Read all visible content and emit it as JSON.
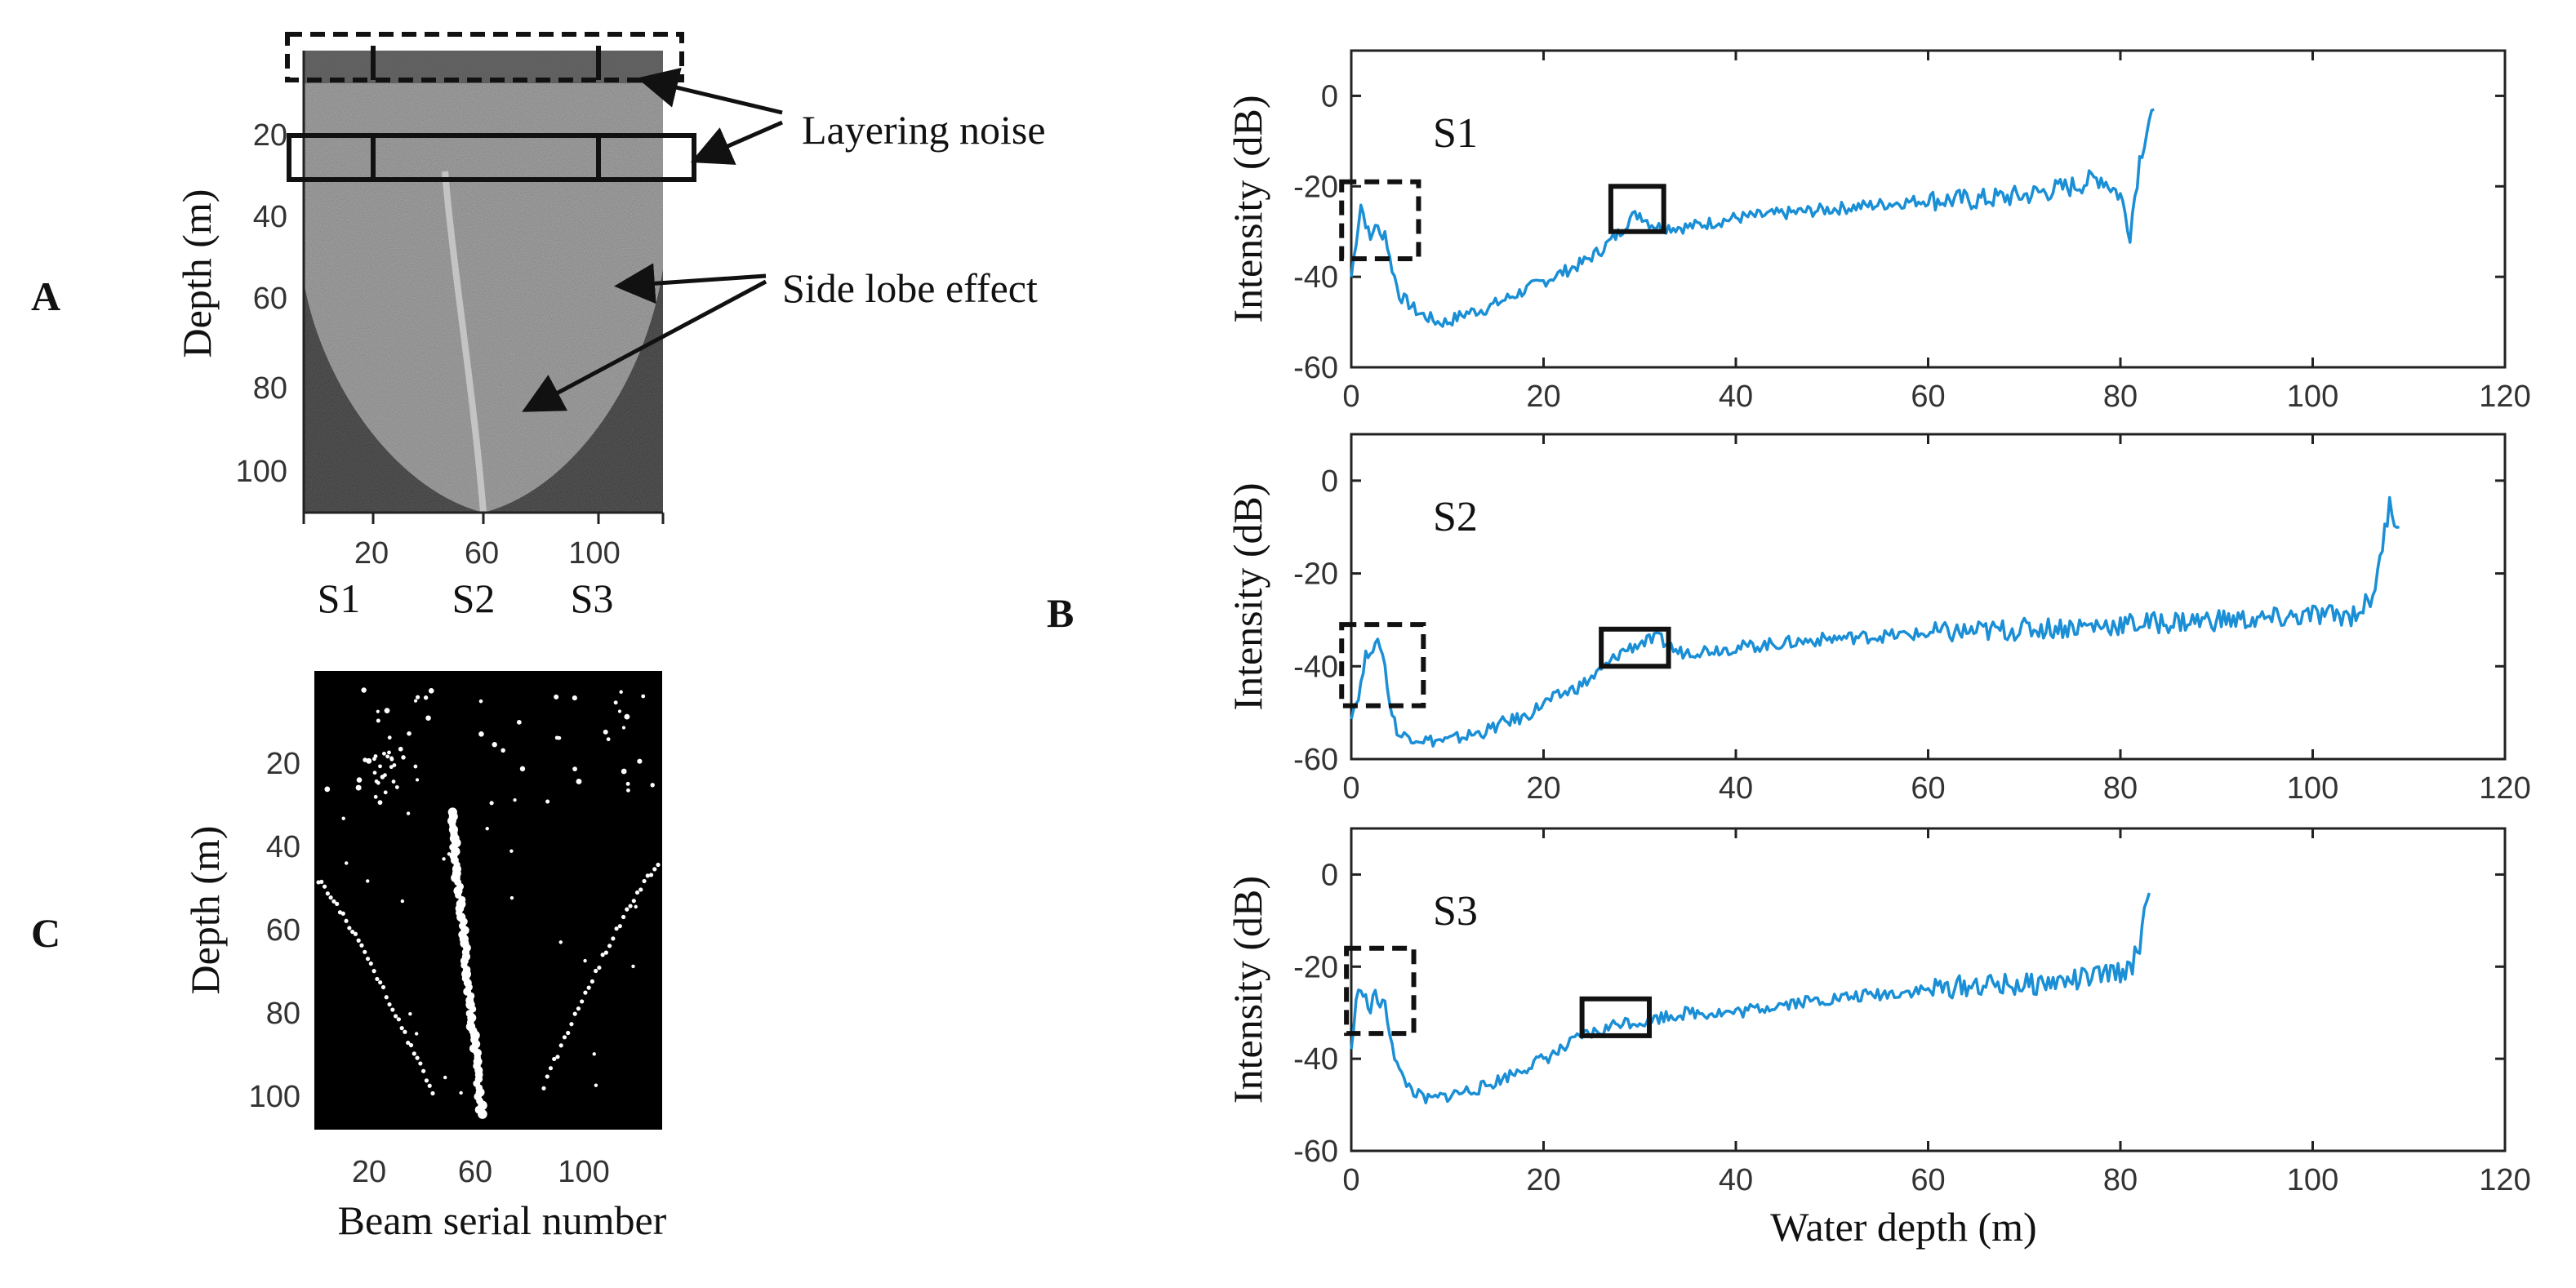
{
  "panel_letters": {
    "a": "A",
    "b": "B",
    "c": "C"
  },
  "panel_a": {
    "ylabel": "Depth (m)",
    "yticks": [
      "20",
      "40",
      "60",
      "80",
      "100"
    ],
    "xticks": [
      "20",
      "60",
      "100"
    ],
    "section_labels": [
      "S1",
      "S2",
      "S3"
    ],
    "annotations": {
      "layering": "Layering noise",
      "sidelobe": "Side lobe effect"
    }
  },
  "panel_c": {
    "ylabel": "Depth (m)",
    "xlabel": "Beam serial number",
    "yticks": [
      "20",
      "40",
      "60",
      "80",
      "100"
    ],
    "xticks": [
      "20",
      "60",
      "100"
    ]
  },
  "chart_data": [
    {
      "type": "line",
      "title": "S1",
      "xlabel": "",
      "ylabel": "Intensity (dB)",
      "xlim": [
        0,
        120
      ],
      "ylim": [
        -60,
        10
      ],
      "xticks": [
        "0",
        "20",
        "40",
        "60",
        "80",
        "100",
        "120"
      ],
      "yticks": [
        "0",
        "-20",
        "-40",
        "-60"
      ],
      "color": "#1a8fd6",
      "series": [
        {
          "name": "S1",
          "x": [
            0,
            0.5,
            1,
            1.5,
            2,
            2.5,
            3,
            3.5,
            4,
            4.5,
            5,
            6,
            7,
            8,
            9,
            10,
            11,
            12,
            14,
            16,
            18,
            20,
            22,
            24,
            26,
            28,
            29,
            30,
            31,
            32,
            35,
            40,
            45,
            50,
            55,
            60,
            65,
            70,
            75,
            78,
            80,
            81,
            82,
            83,
            83.5
          ],
          "y": [
            -40,
            -32,
            -24,
            -28,
            -32,
            -28,
            -31,
            -30,
            -36,
            -40,
            -44,
            -46,
            -48,
            -49,
            -50,
            -50,
            -49,
            -48,
            -47,
            -45,
            -43,
            -41,
            -39,
            -37,
            -34,
            -30,
            -27,
            -26,
            -28,
            -29,
            -29,
            -27,
            -26,
            -25,
            -24,
            -23,
            -23,
            -22,
            -20,
            -18,
            -22,
            -30,
            -14,
            -5,
            -3
          ]
        }
      ],
      "boxes": [
        {
          "style": "dashed",
          "x": [
            -1,
            7
          ],
          "y": [
            -36,
            -19
          ]
        },
        {
          "style": "solid",
          "x": [
            27,
            32.5
          ],
          "y": [
            -30,
            -20
          ]
        }
      ]
    },
    {
      "type": "line",
      "title": "S2",
      "xlabel": "",
      "ylabel": "Intensity (dB)",
      "xlim": [
        0,
        120
      ],
      "ylim": [
        -60,
        10
      ],
      "xticks": [
        "0",
        "20",
        "40",
        "60",
        "80",
        "100",
        "120"
      ],
      "yticks": [
        "0",
        "-20",
        "-40",
        "-60"
      ],
      "color": "#1a8fd6",
      "series": [
        {
          "name": "S2",
          "x": [
            0,
            0.5,
            1,
            1.5,
            2,
            2.5,
            3,
            3.5,
            4,
            4.5,
            5,
            6,
            8,
            10,
            12,
            14,
            16,
            18,
            20,
            22,
            24,
            26,
            28,
            30,
            32,
            34,
            40,
            50,
            60,
            70,
            80,
            90,
            95,
            100,
            104,
            106,
            107,
            108,
            108.5,
            109
          ],
          "y": [
            -50,
            -48,
            -44,
            -38,
            -36,
            -36,
            -35,
            -40,
            -48,
            -52,
            -55,
            -55,
            -56,
            -56,
            -55,
            -54,
            -52,
            -51,
            -48,
            -46,
            -44,
            -41,
            -37,
            -35,
            -34,
            -37,
            -36,
            -34,
            -33,
            -32,
            -31,
            -30,
            -30,
            -29,
            -29,
            -26,
            -18,
            -4,
            -8,
            -10
          ]
        }
      ],
      "boxes": [
        {
          "style": "dashed",
          "x": [
            -1,
            7.5
          ],
          "y": [
            -48.5,
            -31
          ]
        },
        {
          "style": "solid",
          "x": [
            26,
            33
          ],
          "y": [
            -40,
            -32
          ]
        }
      ]
    },
    {
      "type": "line",
      "title": "S3",
      "xlabel": "Water depth (m)",
      "ylabel": "Intensity (dB)",
      "xlim": [
        0,
        120
      ],
      "ylim": [
        -60,
        10
      ],
      "xticks": [
        "0",
        "20",
        "40",
        "60",
        "80",
        "100",
        "120"
      ],
      "yticks": [
        "0",
        "-20",
        "-40",
        "-60"
      ],
      "color": "#1a8fd6",
      "series": [
        {
          "name": "S3",
          "x": [
            0,
            0.5,
            1,
            1.5,
            2,
            2.5,
            3,
            3.5,
            4,
            4.5,
            5,
            6,
            7,
            8,
            10,
            12,
            14,
            16,
            18,
            20,
            22,
            24,
            26,
            28,
            30,
            32,
            35,
            40,
            45,
            50,
            55,
            60,
            65,
            70,
            75,
            78,
            80,
            81,
            82,
            82.5,
            83
          ],
          "y": [
            -38,
            -28,
            -24,
            -27,
            -30,
            -25,
            -29,
            -28,
            -34,
            -39,
            -43,
            -46,
            -48,
            -49,
            -48,
            -47,
            -46,
            -44,
            -42,
            -40,
            -38,
            -35,
            -34,
            -32,
            -32,
            -31,
            -30,
            -30,
            -28,
            -27,
            -26,
            -25,
            -24,
            -24,
            -23,
            -22,
            -21,
            -21,
            -15,
            -8,
            -4
          ]
        }
      ],
      "boxes": [
        {
          "style": "dashed",
          "x": [
            -0.5,
            6.5
          ],
          "y": [
            -34.5,
            -16
          ]
        },
        {
          "style": "solid",
          "x": [
            24,
            31
          ],
          "y": [
            -35,
            -27
          ]
        }
      ]
    }
  ]
}
